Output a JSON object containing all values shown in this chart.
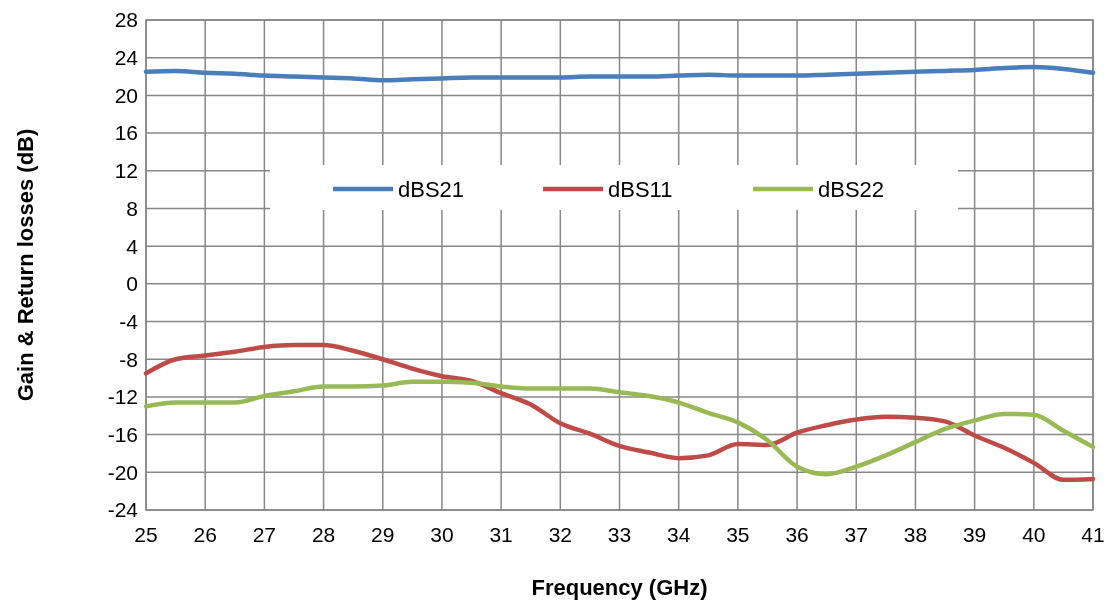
{
  "chart_data": {
    "type": "line",
    "xlabel": "Frequency (GHz)",
    "ylabel": "Gain & Return losses (dB)",
    "x": [
      25,
      25.5,
      26,
      26.5,
      27,
      27.5,
      28,
      28.5,
      29,
      29.5,
      30,
      30.5,
      31,
      31.5,
      32,
      32.5,
      33,
      33.5,
      34,
      34.5,
      35,
      35.5,
      36,
      36.5,
      37,
      37.5,
      38,
      38.5,
      39,
      39.5,
      40,
      40.5,
      41
    ],
    "series": [
      {
        "name": "dBS21",
        "color": "#4a7ebb",
        "values": [
          22.5,
          22.6,
          22.4,
          22.3,
          22.1,
          22,
          21.9,
          21.8,
          21.6,
          21.7,
          21.8,
          21.9,
          21.9,
          21.9,
          21.9,
          22,
          22,
          22,
          22.1,
          22.2,
          22.1,
          22.1,
          22.1,
          22.2,
          22.3,
          22.4,
          22.5,
          22.6,
          22.7,
          22.9,
          23,
          22.8,
          22.4
        ]
      },
      {
        "name": "dBS11",
        "color": "#be4b48",
        "values": [
          -9.5,
          -8,
          -7.6,
          -7.2,
          -6.7,
          -6.5,
          -6.5,
          -7.1,
          -8,
          -9,
          -9.8,
          -10.3,
          -11.6,
          -12.8,
          -14.8,
          -15.9,
          -17.2,
          -17.9,
          -18.5,
          -18.2,
          -17,
          -17.1,
          -15.8,
          -15,
          -14.4,
          -14.1,
          -14.2,
          -14.6,
          -16.1,
          -17.4,
          -19,
          -20.8,
          -20.7
        ]
      },
      {
        "name": "dBS22",
        "color": "#98b954",
        "values": [
          -13,
          -12.6,
          -12.6,
          -12.6,
          -11.9,
          -11.4,
          -10.9,
          -10.9,
          -10.8,
          -10.4,
          -10.4,
          -10.5,
          -10.9,
          -11.1,
          -11.1,
          -11.1,
          -11.5,
          -11.9,
          -12.6,
          -13.7,
          -14.7,
          -16.6,
          -19.4,
          -20.2,
          -19.4,
          -18.2,
          -16.8,
          -15.4,
          -14.5,
          -13.8,
          -13.9,
          -15.6,
          -17.3
        ]
      }
    ],
    "xlim": [
      25,
      41
    ],
    "xticks": [
      25,
      26,
      27,
      28,
      29,
      30,
      31,
      32,
      33,
      34,
      35,
      36,
      37,
      38,
      39,
      40,
      41
    ],
    "ylim": [
      -24,
      28
    ],
    "yticks": [
      -24,
      -20,
      -16,
      -12,
      -8,
      -4,
      0,
      4,
      8,
      12,
      16,
      20,
      24,
      28
    ],
    "grid": true,
    "legend": "top",
    "marker": "none",
    "line_style": "solid"
  }
}
